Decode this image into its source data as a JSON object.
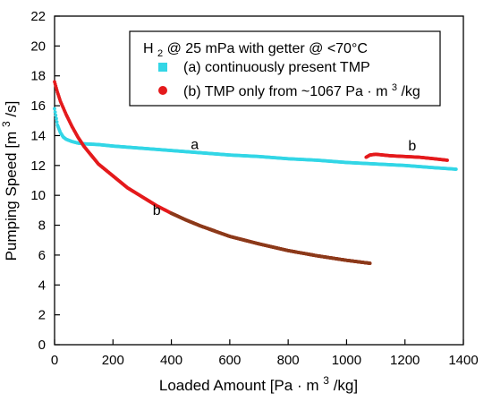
{
  "chart_data": {
    "type": "scatter",
    "xlim": [
      0,
      1400
    ],
    "ylim": [
      0,
      22
    ],
    "x_ticks": [
      0,
      200,
      400,
      600,
      800,
      1000,
      1200,
      1400
    ],
    "y_ticks": [
      0,
      2,
      4,
      6,
      8,
      10,
      12,
      14,
      16,
      18,
      20,
      22
    ],
    "xlabel": {
      "prefix": "Loaded Amount [Pa",
      "dot": "·",
      "mid": "m",
      "sup": "3",
      "suffix": "/kg]"
    },
    "ylabel": {
      "prefix": "Pumping Speed [m",
      "sup": "3",
      "suffix": "/s]"
    },
    "legend": {
      "title": {
        "main": "H",
        "sub": "2",
        "rest": " @ 25 mPa with getter @ <70°C"
      },
      "placement": "top-right",
      "entries": [
        {
          "text": "(a) continuously present TMP",
          "color": "#33d6e6",
          "marker": "square"
        },
        {
          "prefix": "(b) TMP only from ~1067 Pa",
          "dot": "·",
          "mid": "m",
          "sup": "3",
          "suffix": "/kg",
          "color": "#e41a1c",
          "marker": "circle"
        }
      ]
    },
    "series": [
      {
        "color": "#33d6e6",
        "x": [
          0,
          10,
          20,
          30,
          40,
          60,
          80,
          100,
          150,
          200,
          300,
          400,
          500,
          600,
          700,
          800,
          900,
          1000,
          1100,
          1200,
          1300,
          1375
        ],
        "y": [
          15.8,
          14.7,
          14.2,
          13.9,
          13.75,
          13.6,
          13.5,
          13.45,
          13.4,
          13.3,
          13.15,
          13.0,
          12.85,
          12.7,
          12.6,
          12.45,
          12.35,
          12.2,
          12.1,
          12.0,
          11.85,
          11.75
        ]
      },
      {
        "color": "#e41a1c",
        "x": [
          0,
          10,
          20,
          40,
          60,
          80,
          100,
          150,
          200,
          250,
          300,
          350,
          400,
          450,
          500,
          550,
          600,
          700,
          800,
          900,
          1000,
          1080
        ],
        "y": [
          17.6,
          16.9,
          16.3,
          15.4,
          14.6,
          13.9,
          13.3,
          12.1,
          11.3,
          10.5,
          9.9,
          9.3,
          8.8,
          8.35,
          7.95,
          7.6,
          7.25,
          6.75,
          6.3,
          5.95,
          5.65,
          5.45
        ]
      },
      {
        "color": "#e41a1c",
        "x": [
          1067,
          1080,
          1100,
          1150,
          1200,
          1250,
          1300,
          1345
        ],
        "y": [
          12.55,
          12.7,
          12.75,
          12.65,
          12.6,
          12.55,
          12.45,
          12.35
        ]
      },
      {
        "color": "#8b3a1a",
        "x": [
          400,
          450,
          500,
          550,
          600,
          700,
          800,
          900,
          1000,
          1080
        ],
        "y": [
          8.8,
          8.35,
          7.95,
          7.6,
          7.25,
          6.75,
          6.3,
          5.95,
          5.65,
          5.45
        ]
      }
    ],
    "annotations": [
      {
        "text": "a",
        "x": 480,
        "y": 13.1
      },
      {
        "text": "b",
        "x": 1225,
        "y": 13.0
      },
      {
        "text": "b",
        "x": 350,
        "y": 8.7
      }
    ]
  }
}
